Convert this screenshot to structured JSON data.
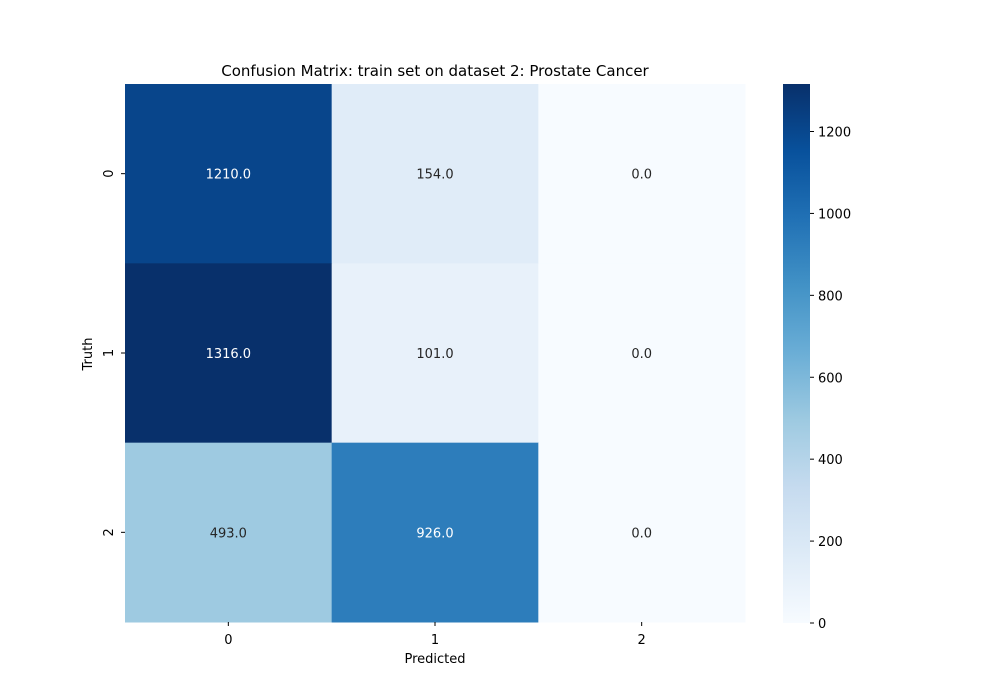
{
  "chart_data": {
    "type": "heatmap",
    "title": "Confusion Matrix: train set on dataset 2: Prostate Cancer",
    "xlabel": "Predicted",
    "ylabel": "Truth",
    "x_categories": [
      "0",
      "1",
      "2"
    ],
    "y_categories": [
      "0",
      "1",
      "2"
    ],
    "values": [
      [
        1210,
        154,
        0
      ],
      [
        1316,
        101,
        0
      ],
      [
        493,
        926,
        0
      ]
    ],
    "cell_labels": [
      [
        "1210.0",
        "154.0",
        "0.0"
      ],
      [
        "1316.0",
        "101.0",
        "0.0"
      ],
      [
        "493.0",
        "926.0",
        "0.0"
      ]
    ],
    "colormap": "Blues",
    "colorbar": {
      "range": [
        0,
        1316
      ],
      "ticks": [
        0,
        200,
        400,
        600,
        800,
        1000,
        1200
      ],
      "tick_labels": [
        "0",
        "200",
        "400",
        "600",
        "800",
        "1000",
        "1200"
      ]
    },
    "colors": {
      "low": "#f7fbff",
      "high": "#08306b",
      "text_light": "#ffffff",
      "text_dark": "#262626"
    }
  }
}
